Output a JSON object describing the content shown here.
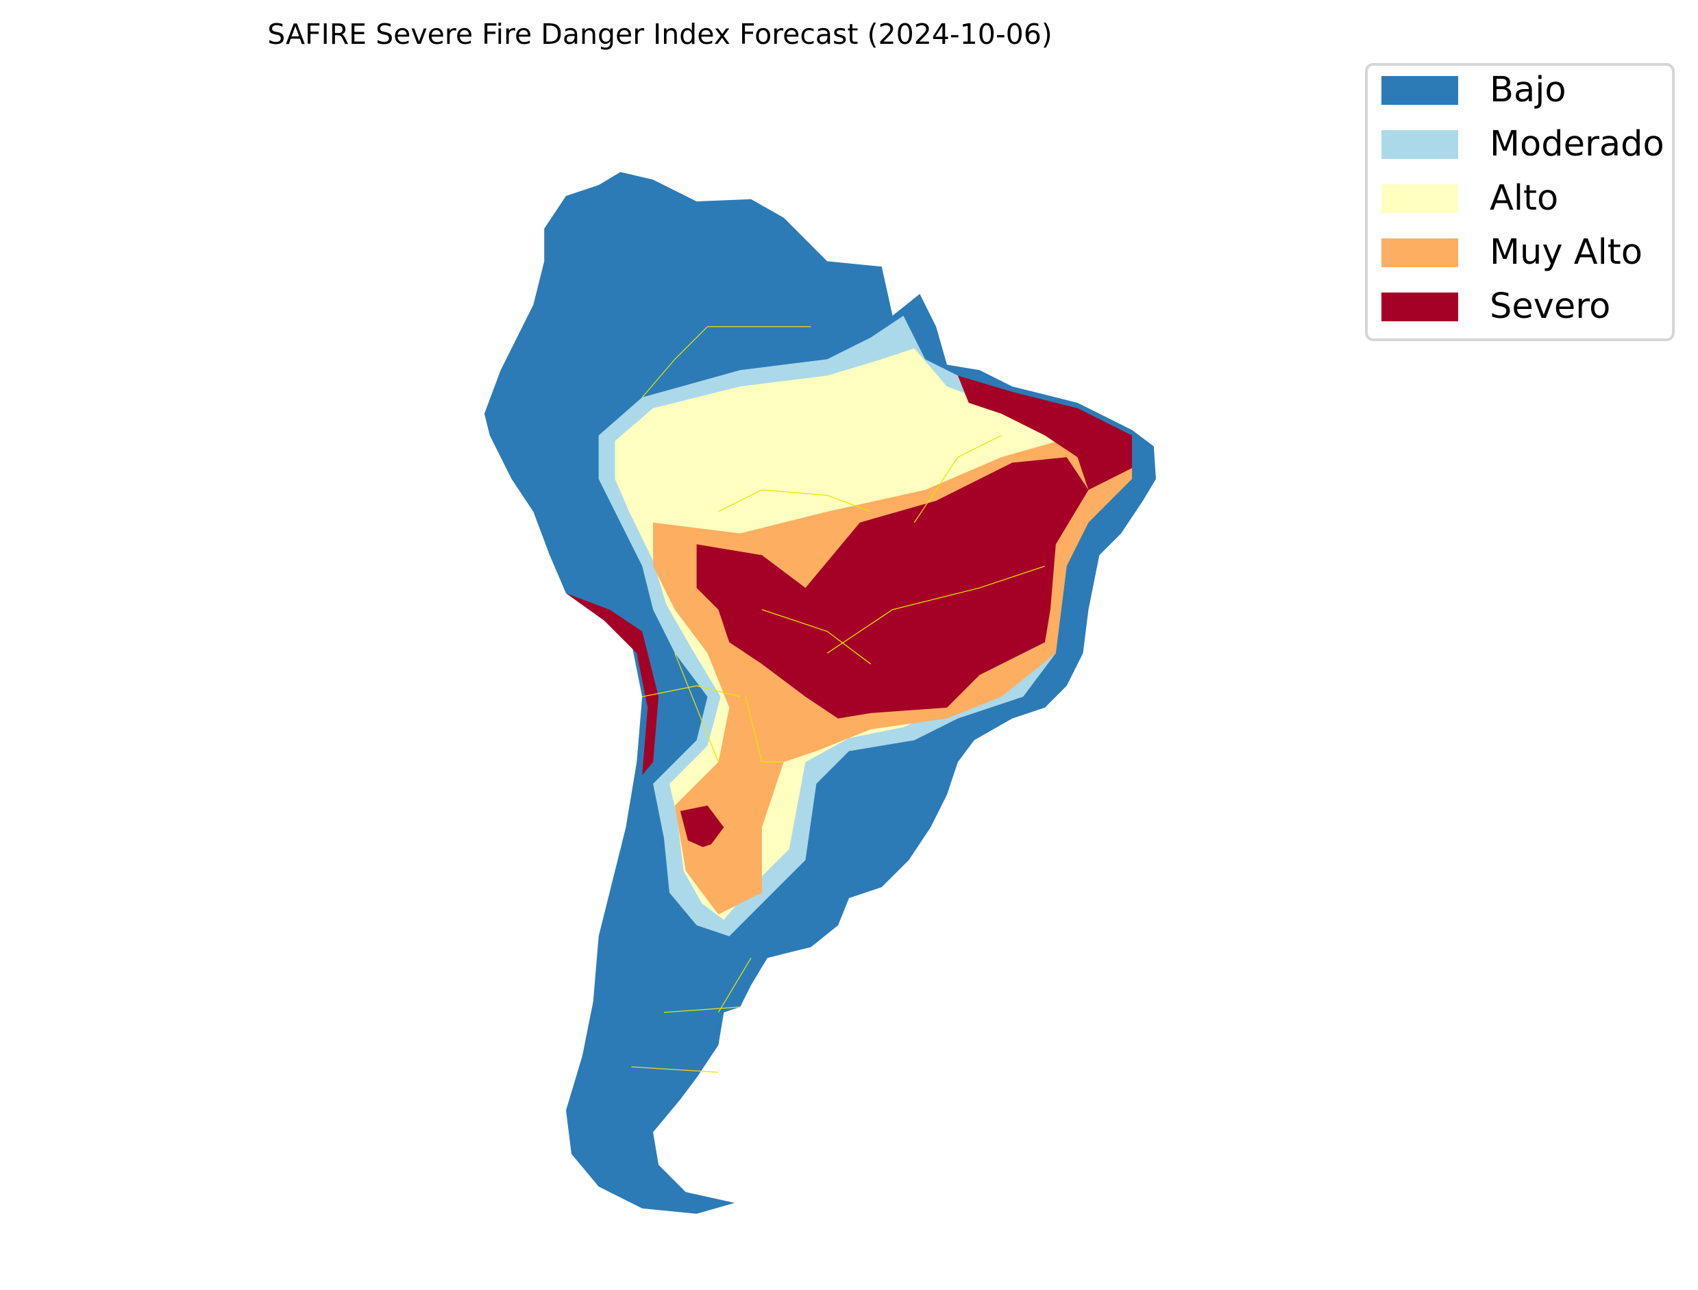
{
  "chart_data": {
    "type": "heatmap",
    "title": "SAFIRE Severe Fire Danger Index Forecast (2024-10-06)",
    "region": "South America",
    "xlabel": "",
    "ylabel": "",
    "grid": false,
    "legend_placement": "top-right",
    "categories": [
      {
        "label": "Bajo",
        "color": "#2c7bb6"
      },
      {
        "label": "Moderado",
        "color": "#abd9e9"
      },
      {
        "label": "Alto",
        "color": "#ffffbf"
      },
      {
        "label": "Muy Alto",
        "color": "#fdae61"
      },
      {
        "label": "Severo",
        "color": "#a50026"
      }
    ],
    "border_color": "#e6e600"
  }
}
